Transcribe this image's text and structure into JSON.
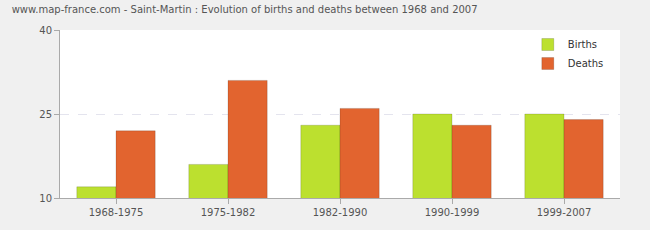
{
  "chart_data": {
    "type": "bar",
    "title": "www.map-france.com - Saint-Martin : Evolution of births and deaths between 1968 and 2007",
    "categories": [
      "1968-1975",
      "1975-1982",
      "1982-1990",
      "1990-1999",
      "1999-2007"
    ],
    "series": [
      {
        "name": "Births",
        "color": "#bce02f",
        "values": [
          12,
          16,
          23,
          25,
          25
        ]
      },
      {
        "name": "Deaths",
        "color": "#e2642f",
        "values": [
          22,
          31,
          26,
          23,
          24
        ]
      }
    ],
    "ylim": [
      10,
      40
    ],
    "yticks": [
      10,
      25,
      40
    ],
    "grid": true,
    "legend": "top right"
  }
}
